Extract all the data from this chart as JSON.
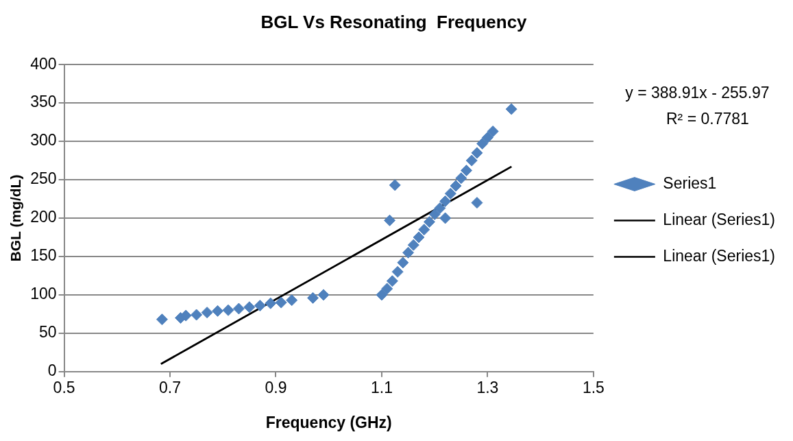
{
  "chart_data": {
    "type": "scatter",
    "title": "BGL Vs Resonating  Frequency",
    "xlabel": "Frequency (GHz)",
    "ylabel": "BGL (mg/dL)",
    "xlim": [
      0.5,
      1.5
    ],
    "xticks": [
      0.5,
      0.7,
      0.9,
      1.1,
      1.3,
      1.5
    ],
    "ylim": [
      0,
      400
    ],
    "yticks": [
      0,
      50,
      100,
      150,
      200,
      250,
      300,
      350,
      400
    ],
    "grid": "y",
    "legend": "right",
    "annotations": [
      "y = 388.91x - 255.97",
      "R² = 0.7781"
    ],
    "series": [
      {
        "name": "Series1",
        "color": "#4f81bd",
        "marker": "diamond",
        "x": [
          0.685,
          0.72,
          0.73,
          0.75,
          0.77,
          0.79,
          0.81,
          0.83,
          0.85,
          0.87,
          0.89,
          0.91,
          0.93,
          0.97,
          0.99,
          1.1,
          1.11,
          1.12,
          1.13,
          1.14,
          1.15,
          1.16,
          1.17,
          1.18,
          1.19,
          1.2,
          1.21,
          1.22,
          1.23,
          1.24,
          1.25,
          1.26,
          1.27,
          1.28,
          1.29,
          1.3,
          1.31,
          1.345,
          1.115,
          1.125,
          1.22,
          1.28
        ],
        "values": [
          68,
          70,
          73,
          74,
          77,
          79,
          80,
          82,
          84,
          86,
          89,
          90,
          93,
          96,
          100,
          100,
          108,
          118,
          130,
          142,
          155,
          165,
          175,
          185,
          195,
          205,
          213,
          222,
          232,
          242,
          252,
          262,
          275,
          285,
          297,
          305,
          313,
          342,
          197,
          243,
          200,
          220
        ]
      },
      {
        "name": "Linear (Series1)",
        "type": "line",
        "color": "#000000",
        "marker": "none",
        "x": [
          0.683,
          1.345
        ],
        "values": [
          10,
          267
        ]
      },
      {
        "name": "Linear (Series1)",
        "type": "line",
        "color": "#000000",
        "marker": "none",
        "x": [
          0.683,
          1.345
        ],
        "values": [
          10,
          267
        ]
      }
    ]
  }
}
